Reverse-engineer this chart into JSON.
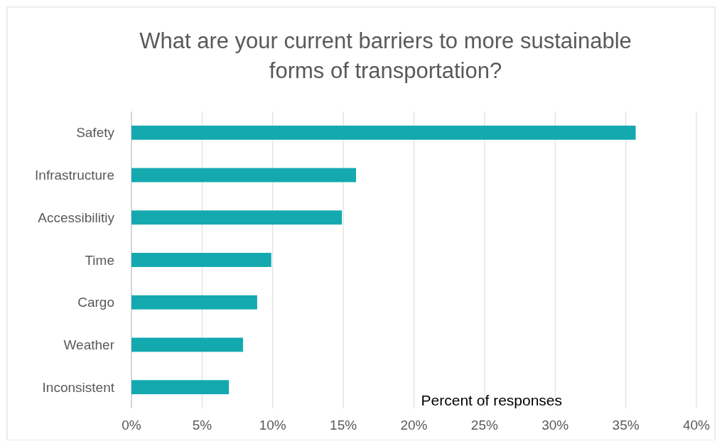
{
  "chart_data": {
    "type": "bar",
    "orientation": "horizontal",
    "title": "What are your current barriers to more sustainable forms of transportation?",
    "xlabel": "Percent of responses",
    "categories": [
      "Safety",
      "Infrastructure",
      "Accessibilitiy",
      "Time",
      "Cargo",
      "Weather",
      "Inconsistent"
    ],
    "values": [
      35.7,
      15.9,
      14.9,
      9.9,
      8.9,
      7.9,
      6.9
    ],
    "color": "#13a9af",
    "xlim": [
      0,
      40
    ],
    "xticks": [
      {
        "value": 0,
        "label": "0%"
      },
      {
        "value": 5,
        "label": "5%"
      },
      {
        "value": 10,
        "label": "10%"
      },
      {
        "value": 15,
        "label": "15%"
      },
      {
        "value": 20,
        "label": "20%"
      },
      {
        "value": 25,
        "label": "25%"
      },
      {
        "value": 30,
        "label": "30%"
      },
      {
        "value": 35,
        "label": "35%"
      },
      {
        "value": 40,
        "label": "40%"
      }
    ],
    "grid": "x"
  }
}
